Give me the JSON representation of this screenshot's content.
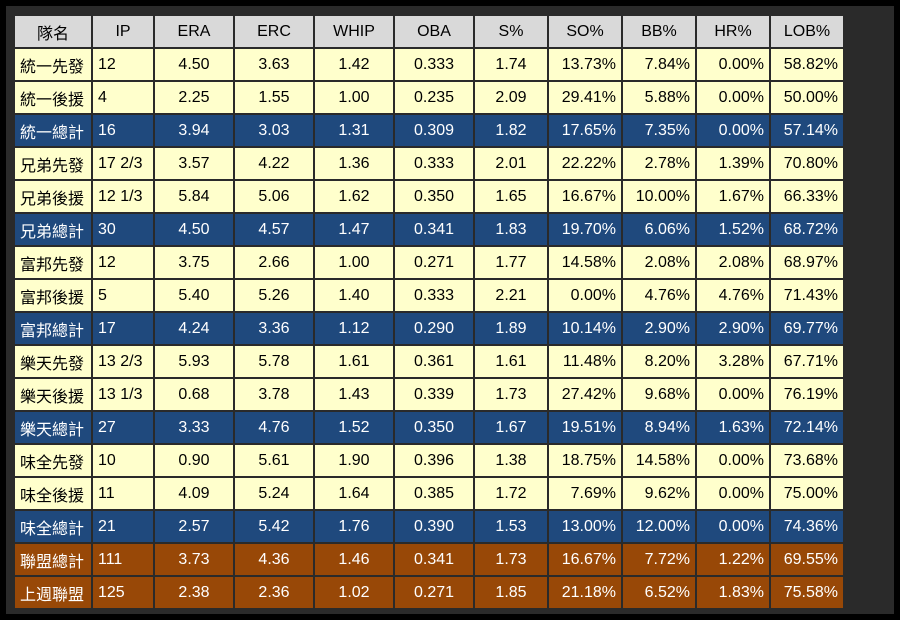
{
  "table": {
    "headers": [
      "隊名",
      "IP",
      "ERA",
      "ERC",
      "WHIP",
      "OBA",
      "S%",
      "SO%",
      "BB%",
      "HR%",
      "LOB%"
    ],
    "rows": [
      {
        "kind": "starter",
        "cells": [
          "統一先發",
          "12",
          "4.50",
          "3.63",
          "1.42",
          "0.333",
          "1.74",
          "13.73%",
          "7.84%",
          "0.00%",
          "58.82%"
        ]
      },
      {
        "kind": "reliever",
        "cells": [
          "統一後援",
          "4",
          "2.25",
          "1.55",
          "1.00",
          "0.235",
          "2.09",
          "29.41%",
          "5.88%",
          "0.00%",
          "50.00%"
        ]
      },
      {
        "kind": "team",
        "cells": [
          "統一總計",
          "16",
          "3.94",
          "3.03",
          "1.31",
          "0.309",
          "1.82",
          "17.65%",
          "7.35%",
          "0.00%",
          "57.14%"
        ]
      },
      {
        "kind": "starter",
        "cells": [
          "兄弟先發",
          "17 2/3",
          "3.57",
          "4.22",
          "1.36",
          "0.333",
          "2.01",
          "22.22%",
          "2.78%",
          "1.39%",
          "70.80%"
        ]
      },
      {
        "kind": "reliever",
        "cells": [
          "兄弟後援",
          "12 1/3",
          "5.84",
          "5.06",
          "1.62",
          "0.350",
          "1.65",
          "16.67%",
          "10.00%",
          "1.67%",
          "66.33%"
        ]
      },
      {
        "kind": "team",
        "cells": [
          "兄弟總計",
          "30",
          "4.50",
          "4.57",
          "1.47",
          "0.341",
          "1.83",
          "19.70%",
          "6.06%",
          "1.52%",
          "68.72%"
        ]
      },
      {
        "kind": "starter",
        "cells": [
          "富邦先發",
          "12",
          "3.75",
          "2.66",
          "1.00",
          "0.271",
          "1.77",
          "14.58%",
          "2.08%",
          "2.08%",
          "68.97%"
        ]
      },
      {
        "kind": "reliever",
        "cells": [
          "富邦後援",
          "5",
          "5.40",
          "5.26",
          "1.40",
          "0.333",
          "2.21",
          "0.00%",
          "4.76%",
          "4.76%",
          "71.43%"
        ]
      },
      {
        "kind": "team",
        "cells": [
          "富邦總計",
          "17",
          "4.24",
          "3.36",
          "1.12",
          "0.290",
          "1.89",
          "10.14%",
          "2.90%",
          "2.90%",
          "69.77%"
        ]
      },
      {
        "kind": "starter",
        "cells": [
          "樂天先發",
          "13 2/3",
          "5.93",
          "5.78",
          "1.61",
          "0.361",
          "1.61",
          "11.48%",
          "8.20%",
          "3.28%",
          "67.71%"
        ]
      },
      {
        "kind": "reliever",
        "cells": [
          "樂天後援",
          "13 1/3",
          "0.68",
          "3.78",
          "1.43",
          "0.339",
          "1.73",
          "27.42%",
          "9.68%",
          "0.00%",
          "76.19%"
        ]
      },
      {
        "kind": "team",
        "cells": [
          "樂天總計",
          "27",
          "3.33",
          "4.76",
          "1.52",
          "0.350",
          "1.67",
          "19.51%",
          "8.94%",
          "1.63%",
          "72.14%"
        ]
      },
      {
        "kind": "starter",
        "cells": [
          "味全先發",
          "10",
          "0.90",
          "5.61",
          "1.90",
          "0.396",
          "1.38",
          "18.75%",
          "14.58%",
          "0.00%",
          "73.68%"
        ]
      },
      {
        "kind": "reliever",
        "cells": [
          "味全後援",
          "11",
          "4.09",
          "5.24",
          "1.64",
          "0.385",
          "1.72",
          "7.69%",
          "9.62%",
          "0.00%",
          "75.00%"
        ]
      },
      {
        "kind": "team",
        "cells": [
          "味全總計",
          "21",
          "2.57",
          "5.42",
          "1.76",
          "0.390",
          "1.53",
          "13.00%",
          "12.00%",
          "0.00%",
          "74.36%"
        ]
      },
      {
        "kind": "league",
        "cells": [
          "聯盟總計",
          "111",
          "3.73",
          "4.36",
          "1.46",
          "0.341",
          "1.73",
          "16.67%",
          "7.72%",
          "1.22%",
          "69.55%"
        ]
      },
      {
        "kind": "league",
        "cells": [
          "上週聯盟",
          "125",
          "2.38",
          "2.36",
          "1.02",
          "0.271",
          "1.85",
          "21.18%",
          "6.52%",
          "1.83%",
          "75.58%"
        ]
      }
    ]
  },
  "colors": {
    "header_bg": "#d9d9d9",
    "row_bg": "#ffffcc",
    "team_total_bg": "#1f497d",
    "league_bg": "#984807"
  }
}
